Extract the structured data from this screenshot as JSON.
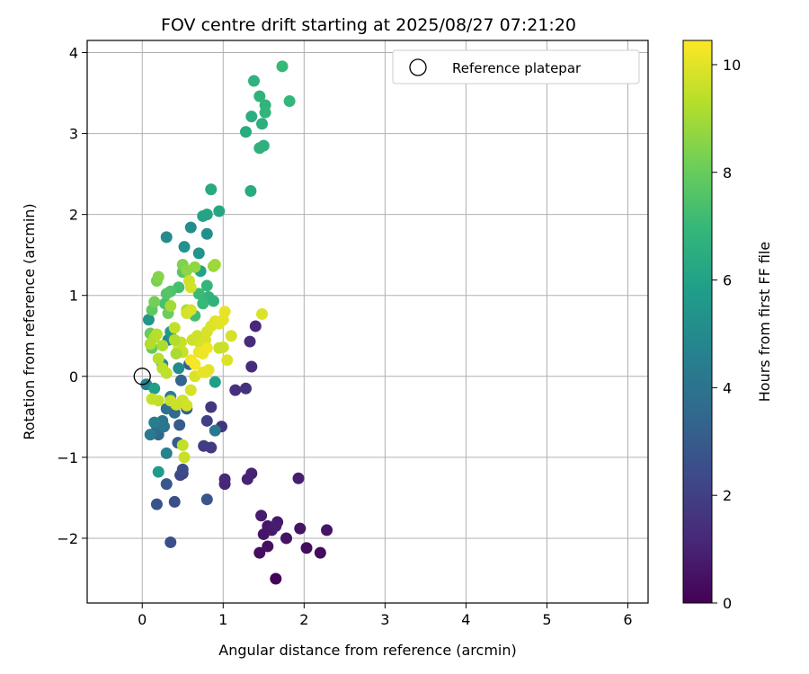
{
  "chart_data": {
    "type": "scatter",
    "title": "FOV centre drift starting at 2025/08/27 07:21:20",
    "xlabel": "Angular distance from reference (arcmin)",
    "ylabel": "Rotation from reference (arcmin)",
    "xlim": [
      -0.68,
      6.25
    ],
    "ylim": [
      -2.8,
      4.15
    ],
    "xticks": [
      0,
      1,
      2,
      3,
      4,
      5,
      6
    ],
    "yticks": [
      -2,
      -1,
      0,
      1,
      2,
      3,
      4
    ],
    "grid": true,
    "legend": {
      "placement": "top-right",
      "entries": [
        "Reference platepar"
      ]
    },
    "reference_point": {
      "x": 0,
      "y": 0
    },
    "colorbar": {
      "label": "Hours from first FF file",
      "colormap": "viridis",
      "range": [
        0,
        10.45
      ],
      "ticks": [
        0,
        2,
        4,
        6,
        8,
        10
      ]
    },
    "colormap_stops": [
      "#440154",
      "#482878",
      "#3e4989",
      "#31688e",
      "#26828e",
      "#1f9e89",
      "#35b779",
      "#6ece58",
      "#b5de2b",
      "#fde725"
    ],
    "points": [
      [
        1.65,
        -2.5,
        0.1
      ],
      [
        2.2,
        -2.18,
        0.3
      ],
      [
        2.03,
        -2.12,
        0.35
      ],
      [
        1.45,
        -2.18,
        0.4
      ],
      [
        1.55,
        -2.1,
        0.45
      ],
      [
        1.78,
        -2.0,
        0.5
      ],
      [
        1.95,
        -1.88,
        0.55
      ],
      [
        2.28,
        -1.9,
        0.6
      ],
      [
        1.5,
        -1.95,
        0.6
      ],
      [
        1.55,
        -1.85,
        0.65
      ],
      [
        1.6,
        -1.9,
        0.7
      ],
      [
        1.67,
        -1.8,
        0.75
      ],
      [
        1.47,
        -1.72,
        0.8
      ],
      [
        1.65,
        -1.85,
        0.85
      ],
      [
        1.93,
        -1.26,
        0.9
      ],
      [
        1.35,
        -1.2,
        1.0
      ],
      [
        1.3,
        -1.27,
        1.05
      ],
      [
        1.02,
        -1.33,
        1.1
      ],
      [
        1.02,
        -1.27,
        1.15
      ],
      [
        1.4,
        0.62,
        1.2
      ],
      [
        1.33,
        0.43,
        1.3
      ],
      [
        1.35,
        0.12,
        1.35
      ],
      [
        1.15,
        -0.17,
        1.45
      ],
      [
        1.28,
        -0.15,
        1.5
      ],
      [
        0.98,
        -0.62,
        1.6
      ],
      [
        0.85,
        -0.38,
        1.7
      ],
      [
        0.85,
        -0.88,
        1.8
      ],
      [
        0.76,
        -0.86,
        1.9
      ],
      [
        0.8,
        -0.55,
        2.0
      ],
      [
        0.5,
        -1.2,
        2.2
      ],
      [
        0.47,
        -1.22,
        2.3
      ],
      [
        0.5,
        -1.15,
        2.4
      ],
      [
        0.4,
        -1.55,
        2.5
      ],
      [
        0.35,
        -2.05,
        2.6
      ],
      [
        0.18,
        -1.58,
        2.7
      ],
      [
        0.8,
        -1.52,
        2.8
      ],
      [
        0.3,
        -1.33,
        2.9
      ],
      [
        0.46,
        -0.6,
        3.0
      ],
      [
        0.44,
        -0.82,
        3.1
      ],
      [
        0.55,
        -0.4,
        3.2
      ],
      [
        0.58,
        0.15,
        3.3
      ],
      [
        0.48,
        -0.05,
        3.4
      ],
      [
        0.2,
        -0.72,
        3.5
      ],
      [
        0.4,
        -0.45,
        3.6
      ],
      [
        0.18,
        -0.62,
        3.7
      ],
      [
        0.5,
        -0.3,
        3.8
      ],
      [
        0.3,
        -0.4,
        3.9
      ],
      [
        0.25,
        -0.55,
        4.0
      ],
      [
        0.27,
        -0.62,
        4.1
      ],
      [
        0.9,
        -0.67,
        4.2
      ],
      [
        0.1,
        -0.72,
        4.3
      ],
      [
        0.15,
        -0.57,
        4.4
      ],
      [
        0.35,
        -0.25,
        4.5
      ],
      [
        0.05,
        -0.1,
        4.6
      ],
      [
        0.3,
        -0.95,
        4.7
      ],
      [
        0.32,
        0.45,
        4.8
      ],
      [
        0.25,
        0.15,
        4.9
      ],
      [
        0.45,
        0.1,
        5.0
      ],
      [
        0.3,
        1.72,
        5.05
      ],
      [
        0.6,
        1.84,
        5.1
      ],
      [
        0.8,
        1.76,
        5.2
      ],
      [
        0.52,
        1.6,
        5.3
      ],
      [
        0.7,
        1.52,
        5.4
      ],
      [
        0.08,
        0.7,
        5.5
      ],
      [
        0.35,
        0.55,
        5.6
      ],
      [
        0.2,
        -1.18,
        5.7
      ],
      [
        0.15,
        -0.15,
        5.8
      ],
      [
        0.9,
        -0.07,
        5.9
      ],
      [
        0.72,
        1.3,
        6.0
      ],
      [
        0.75,
        1.98,
        6.05
      ],
      [
        0.8,
        2.0,
        6.1
      ],
      [
        0.95,
        2.04,
        6.2
      ],
      [
        0.85,
        2.31,
        6.3
      ],
      [
        1.34,
        2.29,
        6.35
      ],
      [
        1.28,
        3.02,
        6.4
      ],
      [
        1.35,
        3.21,
        6.5
      ],
      [
        1.48,
        3.12,
        6.55
      ],
      [
        1.5,
        2.85,
        6.6
      ],
      [
        1.45,
        2.82,
        6.65
      ],
      [
        1.38,
        3.65,
        6.7
      ],
      [
        1.45,
        3.46,
        6.75
      ],
      [
        1.52,
        3.35,
        6.8
      ],
      [
        1.52,
        3.26,
        6.85
      ],
      [
        1.82,
        3.4,
        6.9
      ],
      [
        1.73,
        3.83,
        7.0
      ],
      [
        0.82,
        0.98,
        6.8
      ],
      [
        0.88,
        0.93,
        6.7
      ],
      [
        0.8,
        1.12,
        6.9
      ],
      [
        0.75,
        0.9,
        7.0
      ],
      [
        0.7,
        1.02,
        7.1
      ],
      [
        0.65,
        0.75,
        7.2
      ],
      [
        0.45,
        1.1,
        7.3
      ],
      [
        0.28,
        0.9,
        7.4
      ],
      [
        0.35,
        1.05,
        7.5
      ],
      [
        0.3,
        1.02,
        7.6
      ],
      [
        0.5,
        1.29,
        7.7
      ],
      [
        0.12,
        0.82,
        7.8
      ],
      [
        0.12,
        0.35,
        7.9
      ],
      [
        0.1,
        0.53,
        8.0
      ],
      [
        0.32,
        0.78,
        8.1
      ],
      [
        0.15,
        0.92,
        8.2
      ],
      [
        0.18,
        1.18,
        8.3
      ],
      [
        0.5,
        1.38,
        8.4
      ],
      [
        0.2,
        1.23,
        8.5
      ],
      [
        0.55,
        1.31,
        8.6
      ],
      [
        0.65,
        1.35,
        8.7
      ],
      [
        0.88,
        1.36,
        8.8
      ],
      [
        0.9,
        1.38,
        8.9
      ],
      [
        0.35,
        0.87,
        9.0
      ],
      [
        0.55,
        0.82,
        9.1
      ],
      [
        0.25,
        0.38,
        9.15
      ],
      [
        0.1,
        0.4,
        9.2
      ],
      [
        0.15,
        0.48,
        9.25
      ],
      [
        0.18,
        0.52,
        9.3
      ],
      [
        0.2,
        0.22,
        9.35
      ],
      [
        0.25,
        0.1,
        9.4
      ],
      [
        0.3,
        0.04,
        9.45
      ],
      [
        0.2,
        -0.3,
        9.5
      ],
      [
        0.12,
        -0.28,
        9.55
      ],
      [
        0.35,
        -0.3,
        9.6
      ],
      [
        0.42,
        -0.35,
        9.65
      ],
      [
        0.5,
        -0.3,
        9.7
      ],
      [
        0.55,
        -0.36,
        9.75
      ],
      [
        0.5,
        -0.85,
        9.5
      ],
      [
        0.52,
        -1.0,
        9.6
      ],
      [
        0.6,
        -0.17,
        9.8
      ],
      [
        0.65,
        0.0,
        9.85
      ],
      [
        0.45,
        0.35,
        9.9
      ],
      [
        0.4,
        0.6,
        9.5
      ],
      [
        0.48,
        0.42,
        9.55
      ],
      [
        0.5,
        0.3,
        9.6
      ],
      [
        0.62,
        0.45,
        9.65
      ],
      [
        0.68,
        0.5,
        9.7
      ],
      [
        0.72,
        0.4,
        9.75
      ],
      [
        0.78,
        0.45,
        9.8
      ],
      [
        0.8,
        0.55,
        9.85
      ],
      [
        0.85,
        0.62,
        9.9
      ],
      [
        0.9,
        0.68,
        9.95
      ],
      [
        0.95,
        0.65,
        10.0
      ],
      [
        1.0,
        0.7,
        10.05
      ],
      [
        1.02,
        0.8,
        10.1
      ],
      [
        0.7,
        0.3,
        10.15
      ],
      [
        0.75,
        0.28,
        10.2
      ],
      [
        0.8,
        0.35,
        10.25
      ],
      [
        0.6,
        0.2,
        10.3
      ],
      [
        0.65,
        0.15,
        10.35
      ],
      [
        0.58,
        1.18,
        9.7
      ],
      [
        0.6,
        1.1,
        9.75
      ],
      [
        0.55,
        0.78,
        9.8
      ],
      [
        0.6,
        0.82,
        9.85
      ],
      [
        0.78,
        0.05,
        10.0
      ],
      [
        0.82,
        0.08,
        10.05
      ],
      [
        0.75,
        0.05,
        10.1
      ],
      [
        1.05,
        0.2,
        9.9
      ],
      [
        1.1,
        0.5,
        9.8
      ],
      [
        1.0,
        0.36,
        9.7
      ],
      [
        0.95,
        0.35,
        9.6
      ],
      [
        1.48,
        0.77,
        9.9
      ],
      [
        0.4,
        0.45,
        9.2
      ],
      [
        0.42,
        0.28,
        9.1
      ]
    ]
  }
}
